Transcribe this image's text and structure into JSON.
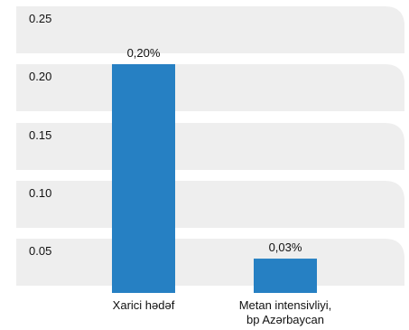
{
  "chart_data": {
    "type": "bar",
    "categories": [
      [
        "Xarici hədəf"
      ],
      [
        "Metan intensivliyi,",
        "bp Azərbaycan"
      ]
    ],
    "values": [
      0.2,
      0.03
    ],
    "data_labels": [
      "0,20%",
      "0,03%"
    ],
    "yticks": [
      "0.25",
      "0.20",
      "0.15",
      "0.10",
      "0.05"
    ],
    "ytick_values": [
      0.25,
      0.2,
      0.15,
      0.1,
      0.05
    ],
    "ylim": [
      0,
      0.25
    ],
    "grid": true,
    "colors": {
      "bar": "#2680c3",
      "band": "#eeeeee"
    }
  }
}
